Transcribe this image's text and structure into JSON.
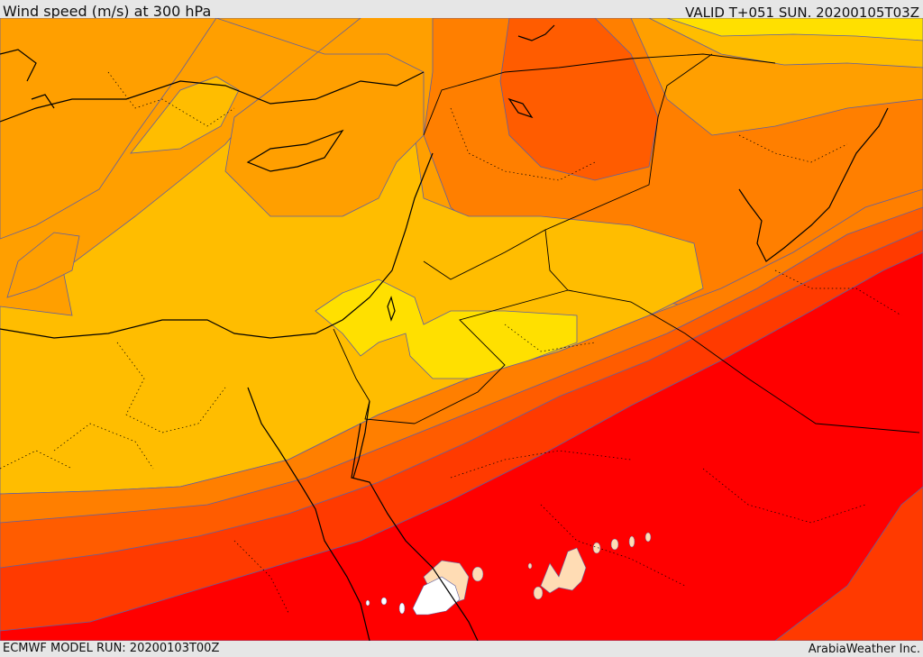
{
  "header": {
    "title": "Wind speed (m/s) at 300 hPa",
    "valid": "VALID T+051 SUN. 20200105T03Z"
  },
  "footer": {
    "model_run": "ECMWF MODEL RUN: 20200103T00Z",
    "credit": "ArabiaWeather Inc."
  },
  "colors": {
    "band_yellow_bright": "#ffe000",
    "band_light_orange": "#ffbd00",
    "band_orange": "#ff9f00",
    "band_dark_orange": "#ff7f00",
    "band_red_orange": "#ff5c00",
    "band_orange_red": "#ff3a00",
    "band_red": "#ff0000",
    "band_peach": "#ffdcb4",
    "band_white": "#ffffff",
    "contour_line": "#6060a0",
    "coastline": "#000000"
  }
}
